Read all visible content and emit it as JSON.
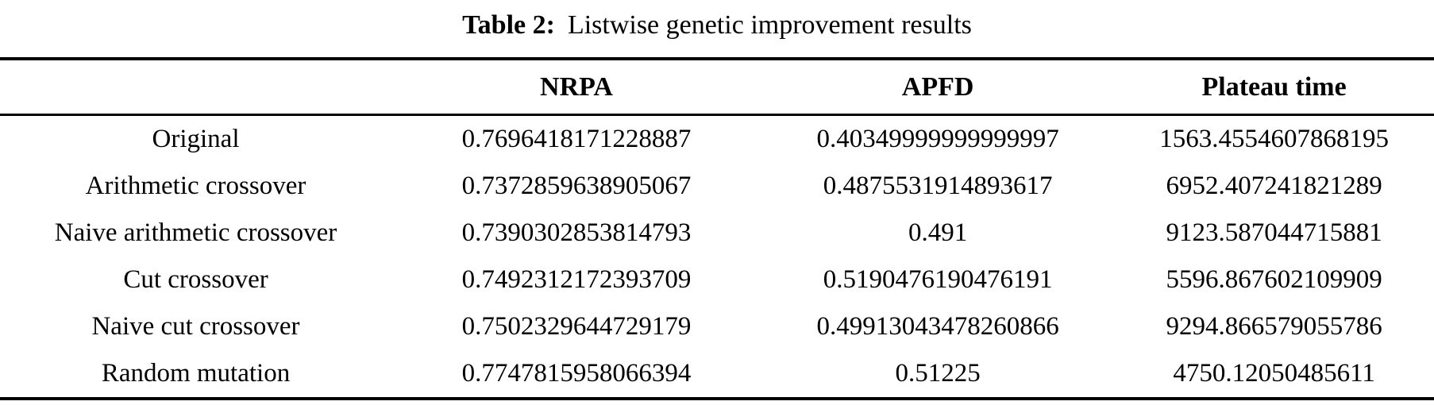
{
  "caption": {
    "label": "Table 2:",
    "text": "Listwise genetic improvement results"
  },
  "table": {
    "columns": [
      "",
      "NRPA",
      "APFD",
      "Plateau time"
    ],
    "rows": [
      {
        "name": "Original",
        "nrpa": "0.7696418171228887",
        "apfd": "0.40349999999999997",
        "plateau_time": "1563.4554607868195"
      },
      {
        "name": "Arithmetic crossover",
        "nrpa": "0.7372859638905067",
        "apfd": "0.4875531914893617",
        "plateau_time": "6952.407241821289"
      },
      {
        "name": "Naive arithmetic crossover",
        "nrpa": "0.7390302853814793",
        "apfd": "0.491",
        "plateau_time": "9123.587044715881"
      },
      {
        "name": "Cut crossover",
        "nrpa": "0.7492312172393709",
        "apfd": "0.5190476190476191",
        "plateau_time": "5596.867602109909"
      },
      {
        "name": "Naive cut crossover",
        "nrpa": "0.7502329644729179",
        "apfd": "0.49913043478260866",
        "plateau_time": "9294.866579055786"
      },
      {
        "name": "Random mutation",
        "nrpa": "0.7747815958066394",
        "apfd": "0.51225",
        "plateau_time": "4750.12050485611"
      }
    ],
    "colors": {
      "text": "#000000",
      "background": "#ffffff",
      "rule": "#000000"
    }
  }
}
